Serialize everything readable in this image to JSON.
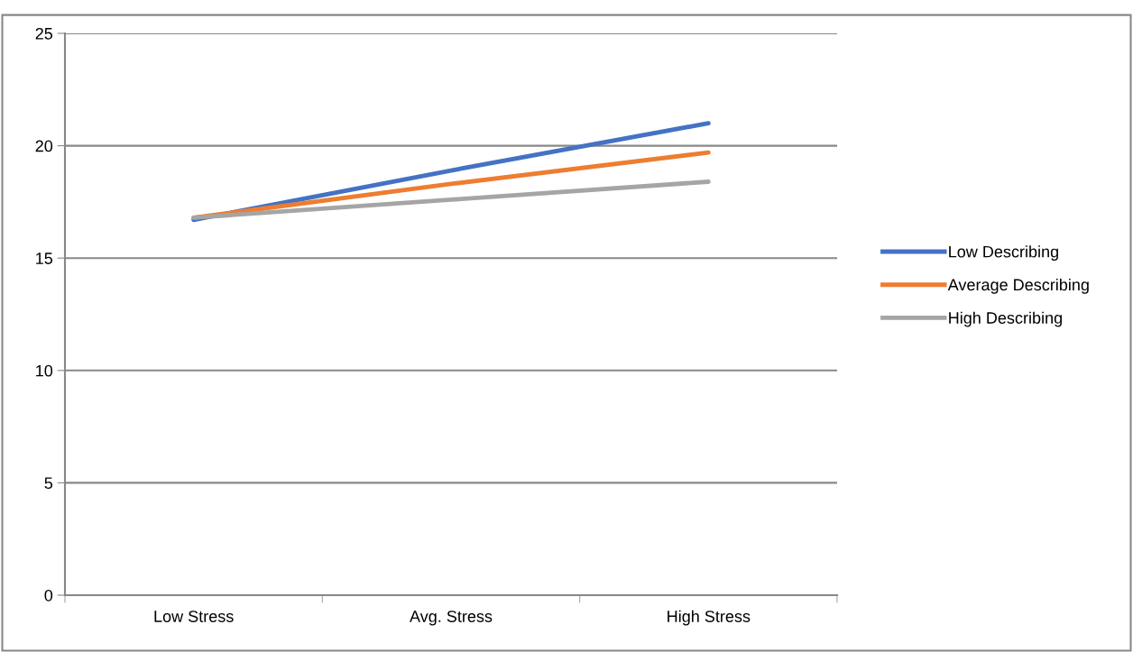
{
  "chart_data": {
    "type": "line",
    "categories": [
      "Low Stress",
      "Avg. Stress",
      "High Stress"
    ],
    "series": [
      {
        "name": "Low Describing",
        "color": "#4472c4",
        "values": [
          16.7,
          18.9,
          21.0
        ]
      },
      {
        "name": "Average Describing",
        "color": "#ed7d31",
        "values": [
          16.8,
          18.3,
          19.7
        ]
      },
      {
        "name": "High Describing",
        "color": "#a5a5a5",
        "values": [
          16.8,
          17.6,
          18.4
        ]
      }
    ],
    "ylim": [
      0,
      25
    ],
    "yticks": [
      0,
      5,
      10,
      15,
      20,
      25
    ],
    "grid": "y",
    "legend": "right",
    "marker": "none",
    "line_style": "solid"
  }
}
